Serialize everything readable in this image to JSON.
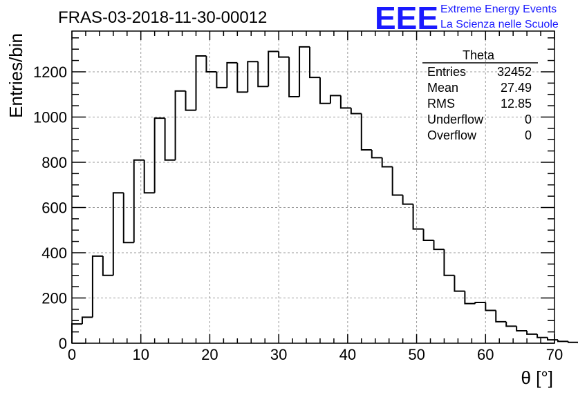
{
  "header": {
    "run_title": "FRAS-03-2018-11-30-00012",
    "logo_text": "EEE",
    "project_line1": "Extreme Energy Events",
    "project_line2": "La Scienza nelle Scuole",
    "brand_color": "#1a1aff"
  },
  "stats": {
    "title": "Theta",
    "rows": [
      {
        "label": "Entries",
        "value": "32452"
      },
      {
        "label": "Mean",
        "value": "27.49"
      },
      {
        "label": "RMS",
        "value": "12.85"
      },
      {
        "label": "Underflow",
        "value": "0"
      },
      {
        "label": "Overflow",
        "value": "0"
      }
    ]
  },
  "chart_data": {
    "type": "histogram",
    "title": "FRAS-03-2018-11-30-00012",
    "xlabel": "θ [°]",
    "ylabel": "Entries/bin",
    "xlim": [
      0,
      70
    ],
    "ylim": [
      0,
      1380
    ],
    "bin_width": 1.5,
    "grid": true,
    "x_ticks": [
      0,
      10,
      20,
      30,
      40,
      50,
      60,
      70
    ],
    "x_tick_labels": [
      "0",
      "10",
      "20",
      "30",
      "40",
      "50",
      "60",
      "70"
    ],
    "y_ticks": [
      0,
      200,
      400,
      600,
      800,
      1000,
      1200
    ],
    "y_tick_labels": [
      "0",
      "200",
      "400",
      "600",
      "800",
      "1000",
      "1200"
    ],
    "bin_edges_start": 0,
    "values": [
      85,
      115,
      385,
      300,
      665,
      445,
      810,
      665,
      995,
      810,
      1115,
      1030,
      1270,
      1200,
      1130,
      1240,
      1110,
      1245,
      1135,
      1290,
      1265,
      1090,
      1310,
      1175,
      1060,
      1095,
      1040,
      1015,
      855,
      820,
      780,
      655,
      615,
      505,
      455,
      415,
      300,
      230,
      175,
      180,
      145,
      95,
      75,
      55,
      40,
      25,
      15,
      8,
      4,
      1
    ],
    "line_color": "#000000"
  }
}
